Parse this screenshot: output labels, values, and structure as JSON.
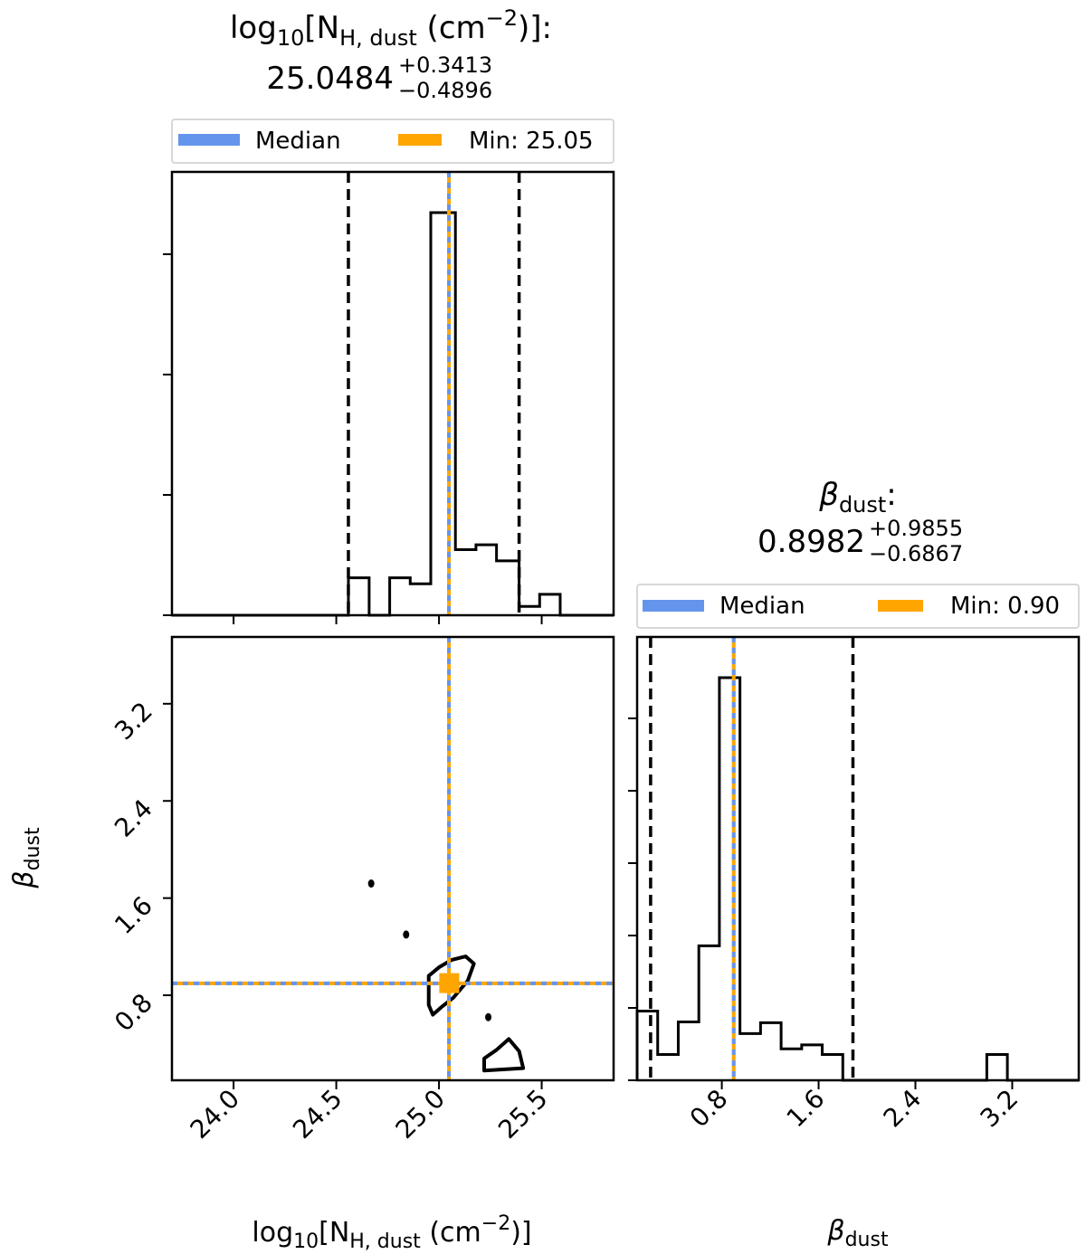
{
  "chart_data": {
    "type": "corner",
    "colors": {
      "median": "#6495ED",
      "min": "#FFA500",
      "hist": "#000000",
      "quantile": "#000000"
    },
    "params": [
      {
        "key": "nh",
        "title_main": "log",
        "title_sub10": "10",
        "title_bracket": "[N",
        "title_sub": "H, dust",
        "title_unit": " (cm",
        "title_sup": "−2",
        "title_end": ")]:",
        "value": "25.0484",
        "err_plus": "+0.3413",
        "err_minus": "−0.4896",
        "median": 25.0484,
        "min_value": 25.05,
        "quantiles": [
          24.559,
          25.39
        ],
        "range": [
          23.7,
          25.85
        ],
        "ticks": [
          24.0,
          24.5,
          25.0,
          25.5
        ],
        "tick_labels": [
          "24.0",
          "24.5",
          "25.0",
          "25.5"
        ],
        "hist_edges": [
          23.7,
          24.0,
          24.5,
          24.559,
          24.66,
          24.76,
          24.86,
          24.96,
          25.04,
          25.08,
          25.18,
          25.28,
          25.39,
          25.49,
          25.59,
          25.69,
          25.85
        ],
        "hist_counts": [
          0.0,
          0.0,
          0.0,
          0.093,
          0.0,
          0.093,
          0.078,
          1.0,
          1.0,
          0.163,
          0.175,
          0.135,
          0.022,
          0.052,
          0.0,
          0.0
        ]
      },
      {
        "key": "beta",
        "title_greek": "β",
        "title_sub": "dust",
        "title_end": ":",
        "value": "0.8982",
        "err_plus": "+0.9855",
        "err_minus": "−0.6867",
        "median": 0.8982,
        "min_value": 0.9,
        "quantiles": [
          0.2115,
          1.8837
        ],
        "range": [
          0.1,
          3.75
        ],
        "ticks": [
          0.8,
          1.6,
          2.4,
          3.2
        ],
        "tick_labels": [
          "0.8",
          "1.6",
          "2.4",
          "3.2"
        ],
        "hist_edges": [
          0.1,
          0.27,
          0.44,
          0.61,
          0.78,
          0.95,
          1.12,
          1.29,
          1.46,
          1.63,
          1.8,
          1.97,
          2.14,
          2.31,
          2.48,
          2.65,
          2.82,
          2.99,
          3.16,
          3.33,
          3.5,
          3.75
        ],
        "hist_counts": [
          0.172,
          0.064,
          0.145,
          0.334,
          1.0,
          0.116,
          0.143,
          0.078,
          0.088,
          0.064,
          0.0,
          0.0,
          0.0,
          0.0,
          0.0,
          0.0,
          0.0,
          0.064,
          0.0,
          0.0,
          0.0
        ]
      }
    ],
    "legend_1": {
      "median_label": "Median",
      "min_label": "Min: 25.05"
    },
    "legend_2": {
      "median_label": "Median",
      "min_label": "Min: 0.90"
    },
    "xlabel_1": {
      "main": "log",
      "sub10": "10",
      "bracket": "[N",
      "sub": "H, dust",
      "unit": " (cm",
      "sup": "−2",
      "end": ")]"
    },
    "xlabel_2": {
      "greek": "β",
      "sub": "dust"
    },
    "ylabel": {
      "greek": "β",
      "sub": "dust"
    },
    "scatter_2d": {
      "min_point": [
        25.05,
        0.9
      ],
      "contours": [
        [
          [
            24.95,
            0.96
          ],
          [
            25.0,
            1.03
          ],
          [
            25.06,
            1.09
          ],
          [
            25.13,
            1.12
          ],
          [
            25.17,
            1.06
          ],
          [
            25.14,
            0.92
          ],
          [
            25.07,
            0.78
          ],
          [
            25.01,
            0.7
          ],
          [
            24.97,
            0.64
          ],
          [
            24.95,
            0.72
          ]
        ],
        [
          [
            25.22,
            0.28
          ],
          [
            25.28,
            0.35
          ],
          [
            25.34,
            0.44
          ],
          [
            25.39,
            0.34
          ],
          [
            25.41,
            0.2
          ],
          [
            25.22,
            0.18
          ]
        ]
      ],
      "dots": [
        [
          24.67,
          1.72
        ],
        [
          24.84,
          1.3
        ],
        [
          25.24,
          0.62
        ]
      ]
    }
  }
}
